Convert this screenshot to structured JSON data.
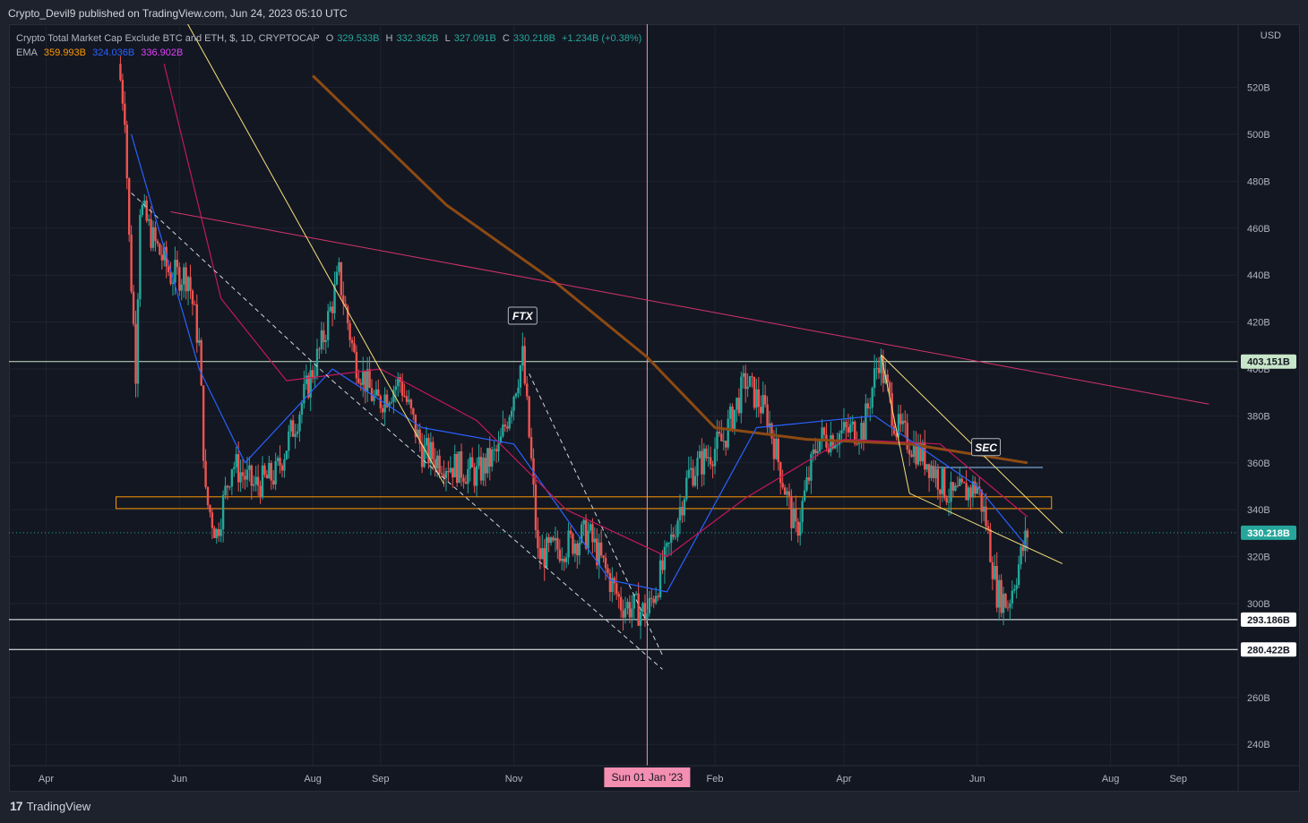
{
  "header": {
    "published": "Crypto_Devil9 published on TradingView.com, Jun 24, 2023 05:10 UTC"
  },
  "legend": {
    "symbol": "Crypto Total Market Cap Exclude BTC and ETH, $, 1D, CRYPTOCAP",
    "open_label": "O",
    "open": "329.533B",
    "high_label": "H",
    "high": "332.362B",
    "low_label": "L",
    "low": "327.091B",
    "close_label": "C",
    "close": "330.218B",
    "change": "+1.234B (+0.38%)",
    "ema_label": "EMA",
    "ema_values": [
      "359.993B",
      "324.036B",
      "336.902B"
    ],
    "ema_colors": [
      "#ff9800",
      "#2962ff",
      "#e91e63"
    ]
  },
  "axis": {
    "currency": "USD",
    "y_ticks": [
      "520B",
      "500B",
      "480B",
      "460B",
      "440B",
      "420B",
      "400B",
      "380B",
      "360B",
      "340B",
      "320B",
      "300B",
      "260B",
      "240B"
    ],
    "x_ticks": [
      "Apr",
      "Jun",
      "Aug",
      "Sep",
      "Nov",
      "Feb",
      "Apr",
      "Jun",
      "Aug",
      "Sep"
    ],
    "crosshair_date": "Sun 01 Jan '23"
  },
  "annotations": {
    "ftx": "FTX",
    "sec": "SEC"
  },
  "price_tags": {
    "current": "330.218B",
    "resistance": "403.151B",
    "support1": "293.186B",
    "support2": "280.422B"
  },
  "brand": {
    "logo": "17",
    "name": "TradingView"
  },
  "colors": {
    "up": "#26a69a",
    "down": "#ef5350",
    "ema200": "#8d4a12",
    "ema_blue": "#2962ff",
    "ema_magenta": "#c2185b",
    "trendline_yellow": "#f5e07a",
    "trendline_pink": "#d6336c",
    "zone": "#ff9800"
  },
  "chart_data": {
    "type": "candlestick",
    "title": "Crypto Total Market Cap Exclude BTC and ETH, $, 1D, CRYPTOCAP",
    "ylabel": "USD",
    "ylim": [
      230,
      535
    ],
    "x_range": [
      "2022-03-15",
      "2023-09-30"
    ],
    "price_path": [
      [
        "2022-05-04",
        530
      ],
      [
        "2022-05-07",
        510
      ],
      [
        "2022-05-09",
        455
      ],
      [
        "2022-05-12",
        400
      ],
      [
        "2022-05-14",
        470
      ],
      [
        "2022-05-20",
        455
      ],
      [
        "2022-05-28",
        440
      ],
      [
        "2022-06-05",
        440
      ],
      [
        "2022-06-10",
        410
      ],
      [
        "2022-06-13",
        345
      ],
      [
        "2022-06-18",
        330
      ],
      [
        "2022-06-25",
        360
      ],
      [
        "2022-07-05",
        350
      ],
      [
        "2022-07-15",
        355
      ],
      [
        "2022-07-25",
        380
      ],
      [
        "2022-08-05",
        410
      ],
      [
        "2022-08-13",
        440
      ],
      [
        "2022-08-20",
        405
      ],
      [
        "2022-08-30",
        385
      ],
      [
        "2022-09-10",
        395
      ],
      [
        "2022-09-20",
        365
      ],
      [
        "2022-10-01",
        360
      ],
      [
        "2022-10-15",
        355
      ],
      [
        "2022-10-25",
        365
      ],
      [
        "2022-11-05",
        405
      ],
      [
        "2022-11-09",
        360
      ],
      [
        "2022-11-12",
        320
      ],
      [
        "2022-11-25",
        325
      ],
      [
        "2022-12-05",
        330
      ],
      [
        "2022-12-20",
        300
      ],
      [
        "2023-01-01",
        296
      ],
      [
        "2023-01-10",
        320
      ],
      [
        "2023-01-20",
        355
      ],
      [
        "2023-02-05",
        370
      ],
      [
        "2023-02-15",
        395
      ],
      [
        "2023-02-25",
        380
      ],
      [
        "2023-03-10",
        330
      ],
      [
        "2023-03-20",
        370
      ],
      [
        "2023-04-10",
        375
      ],
      [
        "2023-04-17",
        405
      ],
      [
        "2023-04-25",
        375
      ],
      [
        "2023-05-10",
        360
      ],
      [
        "2023-05-20",
        345
      ],
      [
        "2023-06-01",
        350
      ],
      [
        "2023-06-05",
        335
      ],
      [
        "2023-06-10",
        305
      ],
      [
        "2023-06-15",
        300
      ],
      [
        "2023-06-24",
        330
      ]
    ],
    "ema_series": [
      {
        "color": "#8d4a12",
        "last": 359.993,
        "path": [
          [
            "2022-08-01",
            525
          ],
          [
            "2022-10-01",
            470
          ],
          [
            "2022-11-20",
            437
          ],
          [
            "2023-01-01",
            405
          ],
          [
            "2023-02-01",
            375
          ],
          [
            "2023-03-15",
            370
          ],
          [
            "2023-05-01",
            368
          ],
          [
            "2023-06-24",
            360
          ]
        ]
      },
      {
        "color": "#2962ff",
        "last": 324.036,
        "path": [
          [
            "2022-05-10",
            500
          ],
          [
            "2022-06-10",
            400
          ],
          [
            "2022-07-01",
            360
          ],
          [
            "2022-08-10",
            400
          ],
          [
            "2022-09-20",
            375
          ],
          [
            "2022-11-01",
            368
          ],
          [
            "2022-12-15",
            310
          ],
          [
            "2023-01-10",
            305
          ],
          [
            "2023-02-20",
            375
          ],
          [
            "2023-04-15",
            380
          ],
          [
            "2023-06-01",
            350
          ],
          [
            "2023-06-24",
            324
          ]
        ]
      },
      {
        "color": "#c2185b",
        "last": 336.902,
        "path": [
          [
            "2022-05-25",
            530
          ],
          [
            "2022-06-20",
            430
          ],
          [
            "2022-07-20",
            395
          ],
          [
            "2022-09-01",
            400
          ],
          [
            "2022-10-15",
            378
          ],
          [
            "2022-11-25",
            340
          ],
          [
            "2023-01-10",
            320
          ],
          [
            "2023-02-15",
            345
          ],
          [
            "2023-04-01",
            370
          ],
          [
            "2023-05-15",
            368
          ],
          [
            "2023-06-24",
            337
          ]
        ]
      }
    ],
    "horizontal_levels": [
      403.151,
      293.186,
      280.422
    ],
    "zone": [
      340.5,
      345.5
    ],
    "events": [
      {
        "label": "FTX",
        "date": "2022-11-05"
      },
      {
        "label": "SEC",
        "date": "2023-06-05"
      }
    ],
    "last_price": 330.218
  }
}
